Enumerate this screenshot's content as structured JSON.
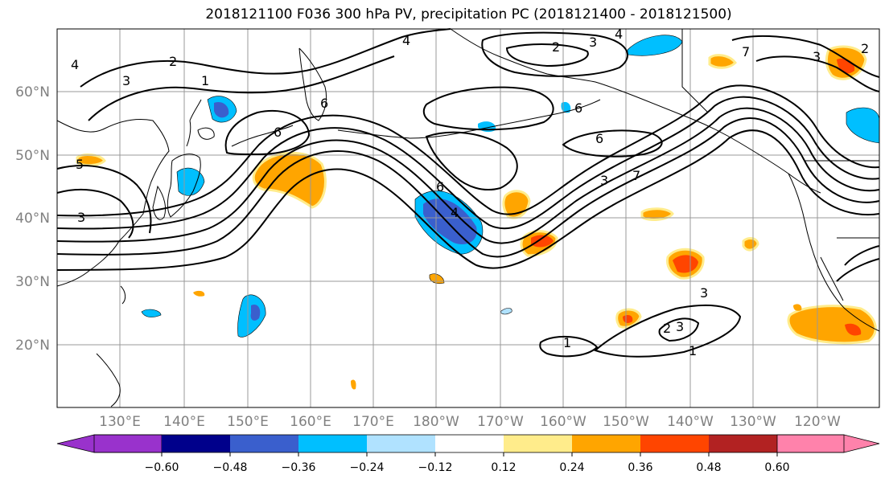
{
  "title": "2018121100 F036 300 hPa PV, precipitation PC (2018121400 - 2018121500)",
  "lat_labels": [
    "60°N",
    "50°N",
    "40°N",
    "30°N",
    "20°N"
  ],
  "lon_labels": [
    "130°E",
    "140°E",
    "150°E",
    "160°E",
    "170°E",
    "180°W",
    "170°W",
    "160°W",
    "150°W",
    "140°W",
    "130°W",
    "120°W"
  ],
  "colorbar": {
    "tick_labels": [
      "−0.60",
      "−0.48",
      "−0.36",
      "−0.24",
      "−0.12",
      "0.12",
      "0.24",
      "0.36",
      "0.48",
      "0.60"
    ],
    "colors": [
      "#9932cc",
      "#00008b",
      "#3a5fcd",
      "#00bfff",
      "#b0e2ff",
      "#ffffff",
      "#ffec8b",
      "#ffa500",
      "#ff4500",
      "#b22222",
      "#ff82ab"
    ]
  },
  "contour_labels": [
    "4",
    "2",
    "3",
    "1",
    "4",
    "2",
    "3",
    "4",
    "6",
    "6",
    "6",
    "7",
    "3",
    "5",
    "3",
    "6",
    "4",
    "3",
    "7",
    "6",
    "1",
    "3",
    "2",
    "1",
    "3",
    "2"
  ],
  "colors": {
    "contour": "#000000",
    "coastline": "#000000",
    "grid": "#999999",
    "axis_label": "#808080"
  }
}
